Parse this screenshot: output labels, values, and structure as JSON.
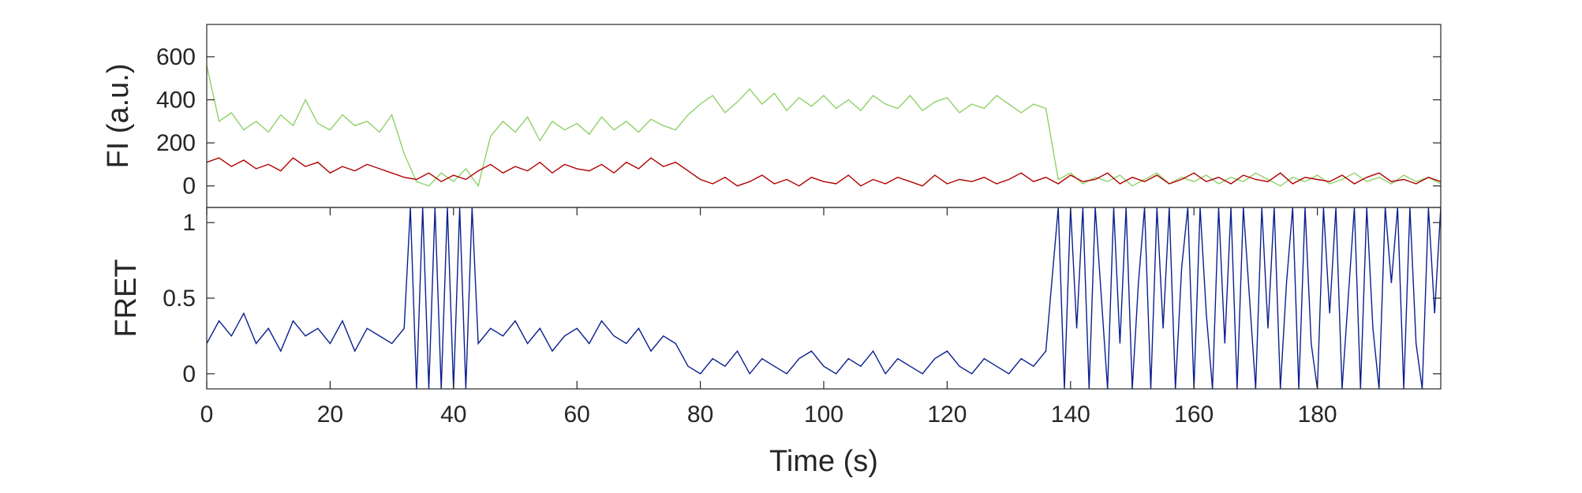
{
  "chart_data": [
    {
      "type": "line",
      "title": "",
      "ylabel": "FI (a.u.)",
      "xlim": [
        0,
        200
      ],
      "ylim": [
        -100,
        750
      ],
      "yticks": [
        0,
        200,
        400,
        600
      ],
      "grid": false,
      "legend": "none",
      "series": [
        {
          "color": "#8fd16a",
          "x": [
            0,
            2,
            4,
            6,
            8,
            10,
            12,
            14,
            16,
            18,
            20,
            22,
            24,
            26,
            28,
            30,
            32,
            34,
            36,
            38,
            40,
            42,
            44,
            46,
            48,
            50,
            52,
            54,
            56,
            58,
            60,
            62,
            64,
            66,
            68,
            70,
            72,
            74,
            76,
            78,
            80,
            82,
            84,
            86,
            88,
            90,
            92,
            94,
            96,
            98,
            100,
            102,
            104,
            106,
            108,
            110,
            112,
            114,
            116,
            118,
            120,
            122,
            124,
            126,
            128,
            130,
            132,
            134,
            136,
            138,
            140,
            142,
            144,
            146,
            148,
            150,
            152,
            154,
            156,
            158,
            160,
            162,
            164,
            166,
            168,
            170,
            172,
            174,
            176,
            178,
            180,
            182,
            184,
            186,
            188,
            190,
            192,
            194,
            196,
            198,
            200
          ],
          "y": [
            560,
            300,
            340,
            260,
            300,
            250,
            330,
            280,
            400,
            290,
            260,
            330,
            280,
            300,
            250,
            330,
            150,
            20,
            0,
            60,
            20,
            80,
            0,
            230,
            300,
            250,
            320,
            210,
            300,
            260,
            290,
            240,
            320,
            260,
            300,
            250,
            310,
            280,
            260,
            330,
            380,
            420,
            340,
            390,
            450,
            380,
            430,
            350,
            410,
            370,
            420,
            360,
            400,
            350,
            420,
            380,
            360,
            420,
            350,
            390,
            410,
            340,
            380,
            360,
            420,
            380,
            340,
            380,
            360,
            30,
            60,
            10,
            40,
            20,
            50,
            0,
            30,
            60,
            10,
            40,
            20,
            50,
            10,
            40,
            20,
            60,
            30,
            0,
            40,
            20,
            50,
            10,
            30,
            60,
            20,
            40,
            10,
            50,
            20,
            40,
            10
          ]
        },
        {
          "color": "#b00000",
          "x": [
            0,
            2,
            4,
            6,
            8,
            10,
            12,
            14,
            16,
            18,
            20,
            22,
            24,
            26,
            28,
            30,
            32,
            34,
            36,
            38,
            40,
            42,
            44,
            46,
            48,
            50,
            52,
            54,
            56,
            58,
            60,
            62,
            64,
            66,
            68,
            70,
            72,
            74,
            76,
            78,
            80,
            82,
            84,
            86,
            88,
            90,
            92,
            94,
            96,
            98,
            100,
            102,
            104,
            106,
            108,
            110,
            112,
            114,
            116,
            118,
            120,
            122,
            124,
            126,
            128,
            130,
            132,
            134,
            136,
            138,
            140,
            142,
            144,
            146,
            148,
            150,
            152,
            154,
            156,
            158,
            160,
            162,
            164,
            166,
            168,
            170,
            172,
            174,
            176,
            178,
            180,
            182,
            184,
            186,
            188,
            190,
            192,
            194,
            196,
            198,
            200
          ],
          "y": [
            110,
            130,
            90,
            120,
            80,
            100,
            70,
            130,
            90,
            110,
            60,
            90,
            70,
            100,
            80,
            60,
            40,
            30,
            60,
            20,
            50,
            30,
            70,
            100,
            60,
            90,
            70,
            110,
            60,
            100,
            80,
            70,
            100,
            60,
            110,
            80,
            130,
            90,
            110,
            70,
            30,
            10,
            40,
            0,
            20,
            50,
            10,
            30,
            0,
            40,
            20,
            10,
            50,
            0,
            30,
            10,
            40,
            20,
            0,
            50,
            10,
            30,
            20,
            40,
            10,
            30,
            60,
            20,
            40,
            10,
            50,
            20,
            30,
            60,
            10,
            40,
            20,
            50,
            10,
            30,
            60,
            20,
            40,
            10,
            50,
            30,
            20,
            60,
            10,
            40,
            30,
            20,
            50,
            10,
            40,
            60,
            20,
            30,
            10,
            40,
            20
          ]
        }
      ]
    },
    {
      "type": "line",
      "title": "",
      "xlabel": "Time (s)",
      "ylabel": "FRET",
      "xlim": [
        0,
        200
      ],
      "ylim": [
        -0.1,
        1.1
      ],
      "yticks": [
        0,
        0.5,
        1
      ],
      "xticks": [
        0,
        20,
        40,
        60,
        80,
        100,
        120,
        140,
        160,
        180
      ],
      "grid": false,
      "legend": "none",
      "series": [
        {
          "color": "#0b1f8c",
          "x": [
            0,
            2,
            4,
            6,
            8,
            10,
            12,
            14,
            16,
            18,
            20,
            22,
            24,
            26,
            28,
            30,
            32,
            33,
            34,
            35,
            36,
            37,
            38,
            39,
            40,
            41,
            42,
            43,
            44,
            46,
            48,
            50,
            52,
            54,
            56,
            58,
            60,
            62,
            64,
            66,
            68,
            70,
            72,
            74,
            76,
            78,
            80,
            82,
            84,
            86,
            88,
            90,
            92,
            94,
            96,
            98,
            100,
            102,
            104,
            106,
            108,
            110,
            112,
            114,
            116,
            118,
            120,
            122,
            124,
            126,
            128,
            130,
            132,
            134,
            136,
            138,
            139,
            140,
            141,
            142,
            143,
            144,
            145,
            146,
            147,
            148,
            149,
            150,
            151,
            152,
            153,
            154,
            155,
            156,
            157,
            158,
            159,
            160,
            161,
            162,
            163,
            164,
            165,
            166,
            167,
            168,
            169,
            170,
            171,
            172,
            173,
            174,
            175,
            176,
            177,
            178,
            179,
            180,
            181,
            182,
            183,
            184,
            185,
            186,
            187,
            188,
            189,
            190,
            191,
            192,
            193,
            194,
            195,
            196,
            197,
            198,
            199,
            200
          ],
          "y": [
            0.2,
            0.35,
            0.25,
            0.4,
            0.2,
            0.3,
            0.15,
            0.35,
            0.25,
            0.3,
            0.2,
            0.35,
            0.15,
            0.3,
            0.25,
            0.2,
            0.3,
            1.1,
            -0.1,
            1.1,
            -0.1,
            1.1,
            -0.1,
            1.1,
            -0.1,
            1.1,
            -0.1,
            1.1,
            0.2,
            0.3,
            0.25,
            0.35,
            0.2,
            0.3,
            0.15,
            0.25,
            0.3,
            0.2,
            0.35,
            0.25,
            0.2,
            0.3,
            0.15,
            0.25,
            0.2,
            0.05,
            0.0,
            0.1,
            0.05,
            0.15,
            0.0,
            0.1,
            0.05,
            0.0,
            0.1,
            0.15,
            0.05,
            0.0,
            0.1,
            0.05,
            0.15,
            0.0,
            0.1,
            0.05,
            0.0,
            0.1,
            0.15,
            0.05,
            0.0,
            0.1,
            0.05,
            0.0,
            0.1,
            0.05,
            0.15,
            1.1,
            -0.1,
            1.1,
            0.3,
            1.1,
            -0.1,
            1.1,
            0.5,
            -0.1,
            1.1,
            0.2,
            1.1,
            -0.1,
            0.6,
            1.1,
            -0.1,
            1.1,
            0.3,
            1.1,
            -0.1,
            0.7,
            1.1,
            -0.1,
            1.1,
            0.4,
            -0.1,
            1.1,
            0.2,
            1.1,
            -0.1,
            1.1,
            0.5,
            -0.1,
            1.1,
            0.3,
            1.1,
            -0.1,
            0.6,
            1.1,
            -0.1,
            1.1,
            0.2,
            -0.1,
            1.1,
            0.4,
            1.1,
            -0.1,
            0.5,
            1.1,
            -0.1,
            1.1,
            0.3,
            -0.1,
            1.1,
            0.6,
            1.1,
            -0.1,
            1.1,
            0.2,
            -0.1,
            1.1,
            0.4,
            1.1
          ]
        }
      ]
    }
  ]
}
